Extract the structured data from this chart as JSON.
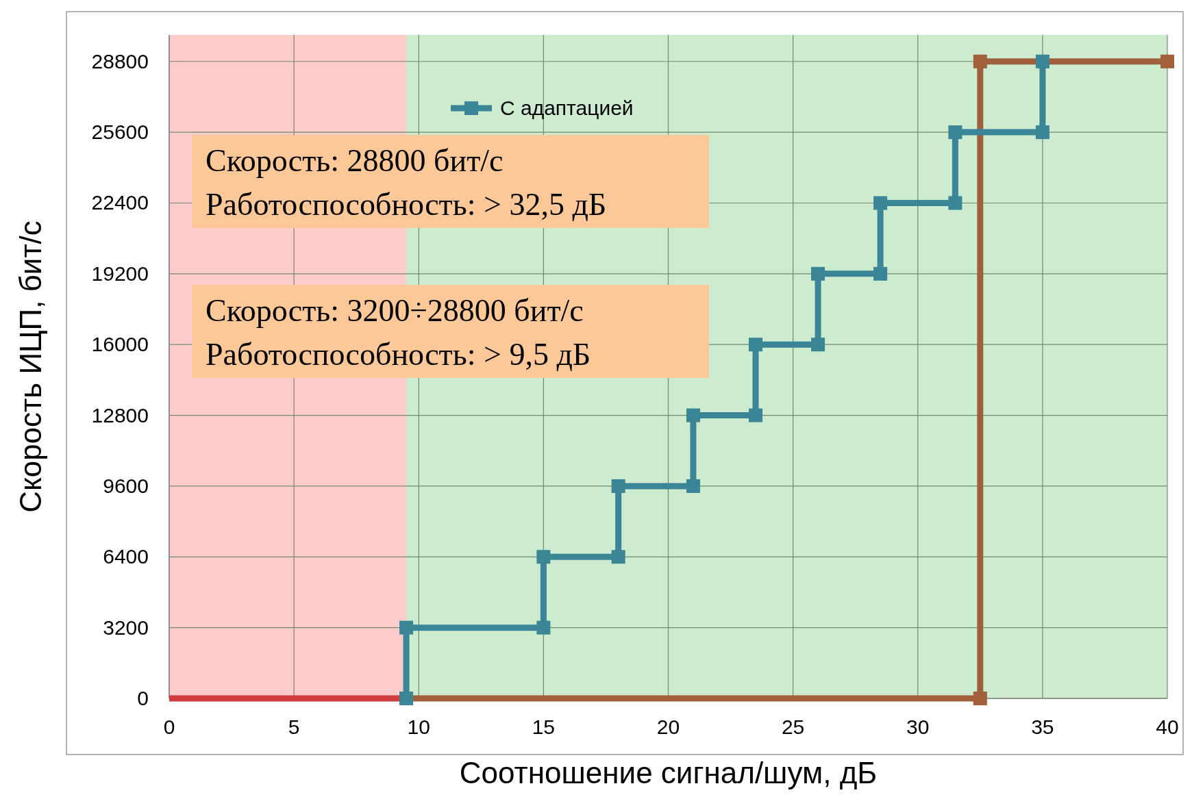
{
  "chart_data": {
    "type": "line",
    "xlabel": "Соотношение сигнал/шум, дБ",
    "ylabel": "Скорость ИЦП, бит/с",
    "xlim": [
      0,
      40
    ],
    "ylim": [
      0,
      30000
    ],
    "xticks": [
      0,
      5,
      10,
      15,
      20,
      25,
      30,
      35,
      40
    ],
    "yticks": [
      0,
      3200,
      6400,
      9600,
      12800,
      16000,
      19200,
      22400,
      25600,
      28800
    ],
    "grid": true,
    "legend": "top",
    "marker": "square",
    "bands": [
      {
        "axis": "x",
        "from": 0,
        "to": 9.5,
        "color": "#ffcccc"
      },
      {
        "axis": "x",
        "from": 9.5,
        "to": 40,
        "color": "#cdebce"
      }
    ],
    "series": [
      {
        "color": "#a0603c",
        "x": [
          9.5,
          32.5,
          32.5,
          40
        ],
        "values": [
          0,
          0,
          28800,
          28800
        ]
      },
      {
        "color": "#d23c3c",
        "x": [
          0,
          9.5
        ],
        "values": [
          0,
          0
        ],
        "marker": "none"
      },
      {
        "name": "С адаптацией",
        "color": "#3a8596",
        "x": [
          9.5,
          9.5,
          15,
          15,
          18,
          18,
          21,
          21,
          23.5,
          23.5,
          26,
          26,
          28.5,
          28.5,
          31.5,
          31.5,
          35,
          35
        ],
        "values": [
          0,
          3200,
          3200,
          6400,
          6400,
          9600,
          9600,
          12800,
          12800,
          16000,
          16000,
          19200,
          19200,
          22400,
          22400,
          25600,
          25600,
          28800
        ]
      }
    ],
    "annotations": [
      "Скорость: 28800 бит/с\nРаботоспособность: > 32,5 дБ",
      "Скорость: 3200÷28800 бит/с\nРаботоспособность: > 9,5 дБ"
    ]
  }
}
